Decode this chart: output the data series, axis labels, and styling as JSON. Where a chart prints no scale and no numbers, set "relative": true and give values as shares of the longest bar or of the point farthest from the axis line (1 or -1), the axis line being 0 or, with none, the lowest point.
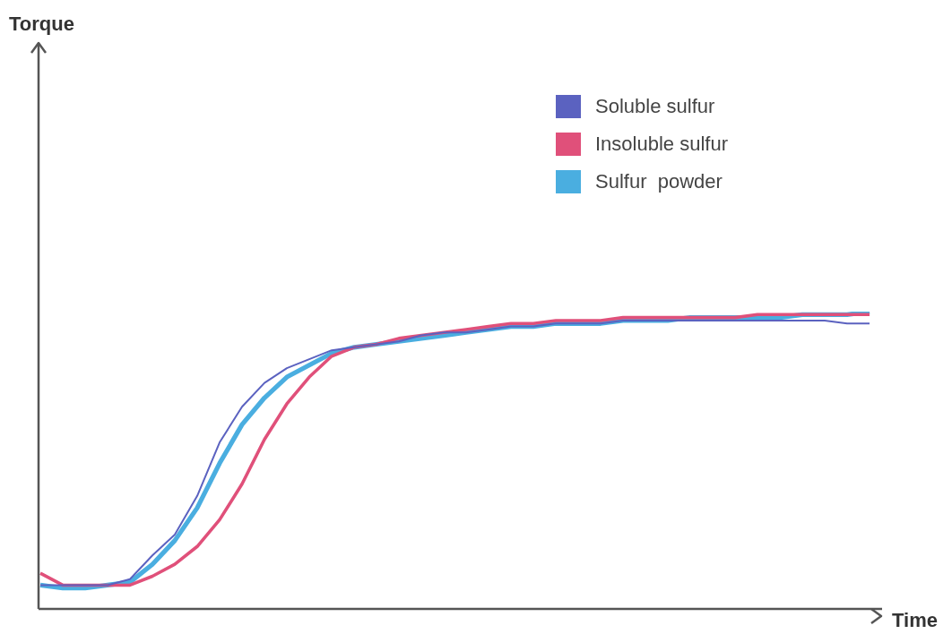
{
  "chart_data": {
    "type": "line",
    "relative": true,
    "xlabel": "Time",
    "annotations": [
      "Torque"
    ],
    "legend": "top right",
    "marker": "none",
    "line_style": "solid",
    "grid": false,
    "categories": [
      null,
      null,
      null,
      null,
      null,
      null,
      null,
      null,
      null,
      null,
      null,
      null,
      null,
      null,
      null,
      null,
      null,
      null,
      null,
      null,
      null,
      null,
      null,
      null,
      null,
      null,
      null,
      null,
      null,
      null,
      null,
      null,
      null,
      null,
      null,
      null,
      null,
      null
    ],
    "series": [
      {
        "name": "Soluble sulfur",
        "color": "#5b62c0",
        "values": [
          0.08,
          0.08,
          0.08,
          0.08,
          0.1,
          0.18,
          0.25,
          0.38,
          0.56,
          0.68,
          0.76,
          0.81,
          0.84,
          0.87,
          0.88,
          0.89,
          0.9,
          0.92,
          0.93,
          0.93,
          0.94,
          0.95,
          0.95,
          0.96,
          0.96,
          0.96,
          0.97,
          0.97,
          0.97,
          0.97,
          0.97,
          0.97,
          0.97,
          0.97,
          0.97,
          0.97,
          0.96,
          0.96
        ]
      },
      {
        "name": "Insoluble sulfur",
        "color": "#e0507a",
        "values": [
          0.12,
          0.08,
          0.08,
          0.08,
          0.08,
          0.11,
          0.15,
          0.21,
          0.3,
          0.42,
          0.57,
          0.69,
          0.78,
          0.85,
          0.88,
          0.89,
          0.91,
          0.92,
          0.93,
          0.94,
          0.95,
          0.96,
          0.96,
          0.97,
          0.97,
          0.97,
          0.98,
          0.98,
          0.98,
          0.98,
          0.98,
          0.98,
          0.99,
          0.99,
          0.99,
          0.99,
          0.99,
          0.99
        ]
      },
      {
        "name": "Sulfur  powder",
        "color": "#4aaee0",
        "values": [
          0.08,
          0.07,
          0.07,
          0.08,
          0.09,
          0.15,
          0.23,
          0.34,
          0.49,
          0.62,
          0.71,
          0.78,
          0.82,
          0.86,
          0.88,
          0.89,
          0.9,
          0.91,
          0.92,
          0.93,
          0.94,
          0.95,
          0.95,
          0.96,
          0.96,
          0.96,
          0.97,
          0.97,
          0.97,
          0.98,
          0.98,
          0.98,
          0.98,
          0.98,
          0.99,
          0.99,
          0.99,
          1
        ]
      }
    ]
  }
}
